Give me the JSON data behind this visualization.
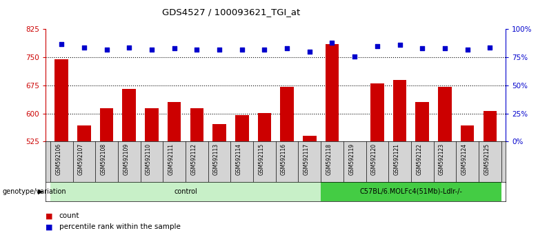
{
  "title": "GDS4527 / 100093621_TGI_at",
  "samples": [
    "GSM592106",
    "GSM592107",
    "GSM592108",
    "GSM592109",
    "GSM592110",
    "GSM592111",
    "GSM592112",
    "GSM592113",
    "GSM592114",
    "GSM592115",
    "GSM592116",
    "GSM592117",
    "GSM592118",
    "GSM592119",
    "GSM592120",
    "GSM592121",
    "GSM592122",
    "GSM592123",
    "GSM592124",
    "GSM592125"
  ],
  "counts": [
    745,
    568,
    614,
    665,
    614,
    630,
    614,
    572,
    596,
    601,
    672,
    540,
    785,
    520,
    680,
    690,
    630,
    672,
    568,
    606
  ],
  "percentile_ranks": [
    87,
    84,
    82,
    84,
    82,
    83,
    82,
    82,
    82,
    82,
    83,
    80,
    88,
    76,
    85,
    86,
    83,
    83,
    82,
    84
  ],
  "groups": [
    "control",
    "control",
    "control",
    "control",
    "control",
    "control",
    "control",
    "control",
    "control",
    "control",
    "control",
    "control",
    "C57BL/6.MOLFc4(51Mb)-Ldlr-/-",
    "C57BL/6.MOLFc4(51Mb)-Ldlr-/-",
    "C57BL/6.MOLFc4(51Mb)-Ldlr-/-",
    "C57BL/6.MOLFc4(51Mb)-Ldlr-/-",
    "C57BL/6.MOLFc4(51Mb)-Ldlr-/-",
    "C57BL/6.MOLFc4(51Mb)-Ldlr-/-",
    "C57BL/6.MOLFc4(51Mb)-Ldlr-/-",
    "C57BL/6.MOLFc4(51Mb)-Ldlr-/-"
  ],
  "ylim_left": [
    525,
    825
  ],
  "ylim_right": [
    0,
    100
  ],
  "yticks_left": [
    525,
    600,
    675,
    750,
    825
  ],
  "yticks_right": [
    0,
    25,
    50,
    75,
    100
  ],
  "bar_color": "#cc0000",
  "dot_color": "#0000cc",
  "bar_width": 0.6,
  "control_bg": "#c8f0c8",
  "mutant_bg": "#44cc44",
  "group_label": "genotype/variation",
  "legend_count": "count",
  "legend_percentile": "percentile rank within the sample",
  "sample_bg": "#d4d4d4",
  "dotted_lines": [
    750,
    675,
    600
  ],
  "n_control": 12,
  "n_mutant": 8
}
